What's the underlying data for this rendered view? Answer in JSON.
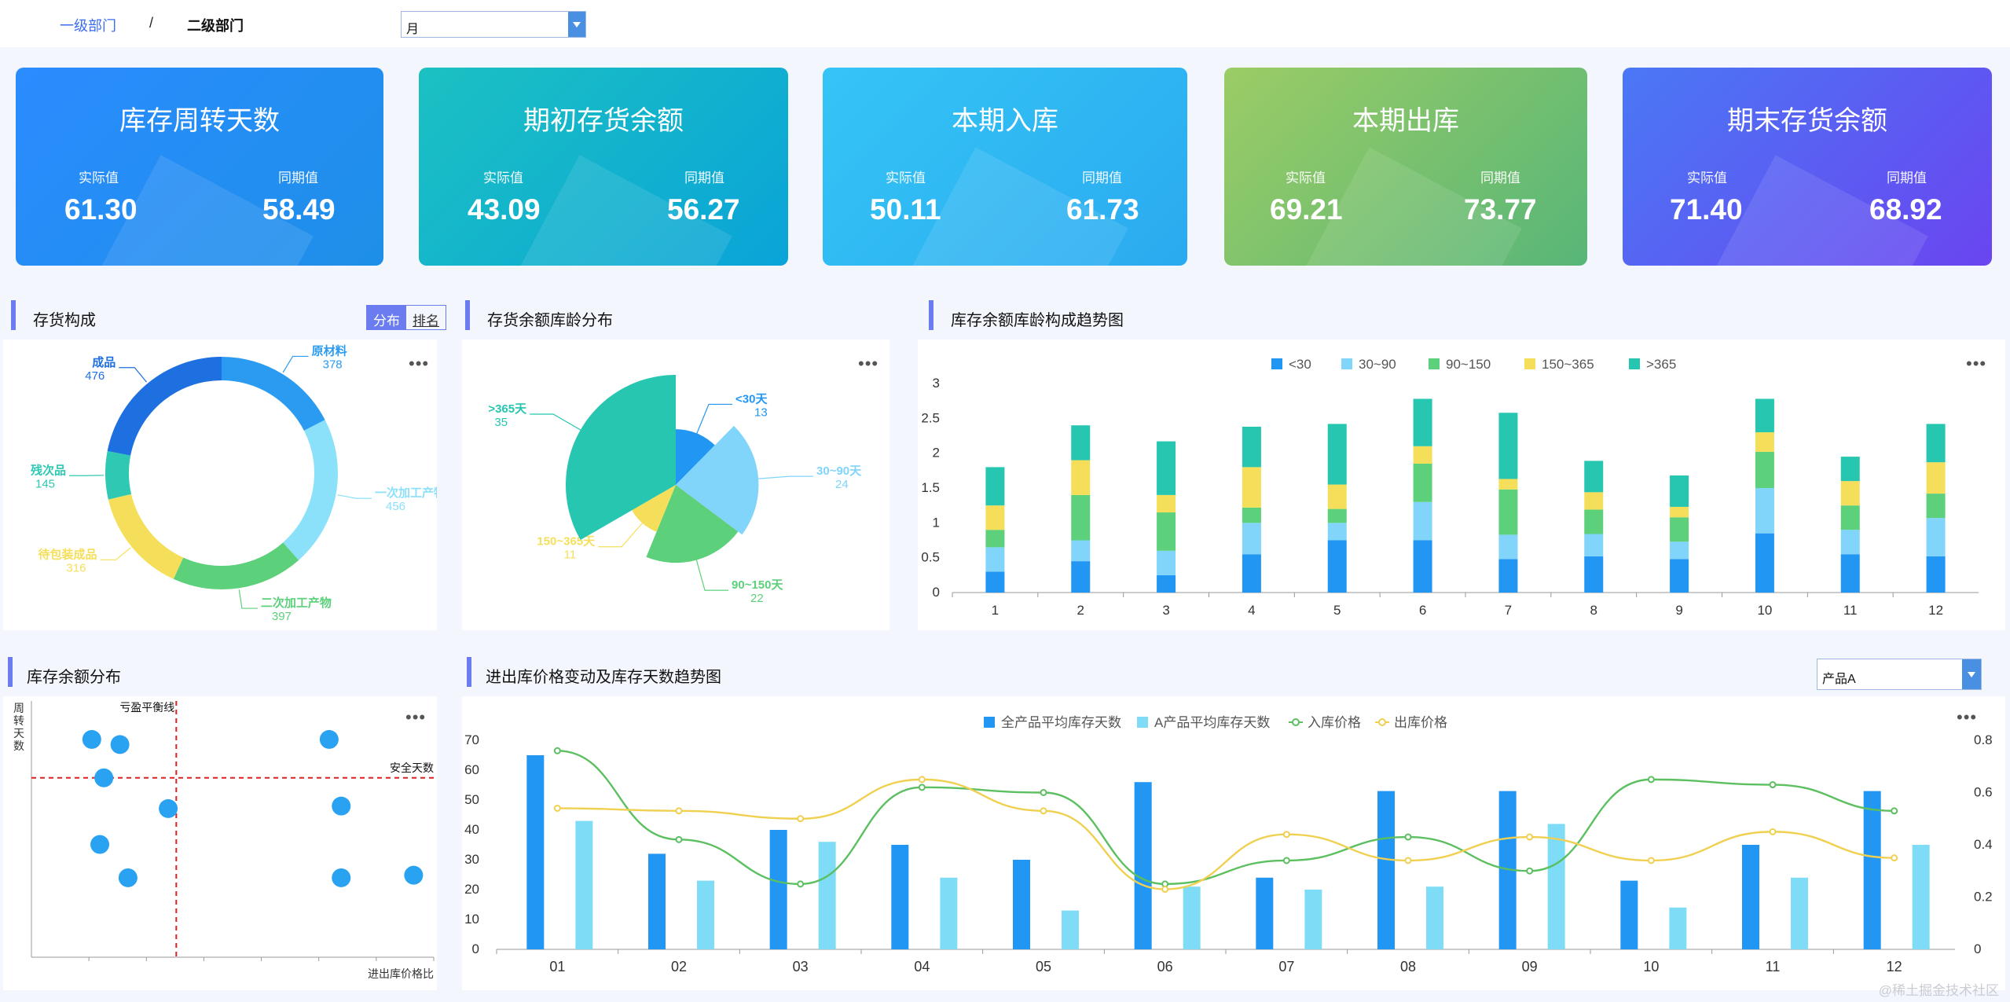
{
  "breadcrumb": {
    "first": "一级部门",
    "separator": "/",
    "second": "二级部门"
  },
  "period_select": {
    "value": "月"
  },
  "product_select": {
    "value": "产品A"
  },
  "kpis": [
    {
      "title": "库存周转天数",
      "actual_label": "实际值",
      "actual": "61.30",
      "prior_label": "同期值",
      "prior": "58.49",
      "colors": [
        "#2a8cff",
        "#1e8fe8"
      ]
    },
    {
      "title": "期初存货余额",
      "actual_label": "实际值",
      "actual": "43.09",
      "prior_label": "同期值",
      "prior": "56.27",
      "colors": [
        "#1bc1c2",
        "#0aa4d8"
      ]
    },
    {
      "title": "本期入库",
      "actual_label": "实际值",
      "actual": "50.11",
      "prior_label": "同期值",
      "prior": "61.73",
      "colors": [
        "#35c5f5",
        "#2aaaf0"
      ]
    },
    {
      "title": "本期出库",
      "actual_label": "实际值",
      "actual": "69.21",
      "prior_label": "同期值",
      "prior": "73.77",
      "colors": [
        "#9ccc65",
        "#57b678"
      ]
    },
    {
      "title": "期末存货余额",
      "actual_label": "实际值",
      "actual": "71.40",
      "prior_label": "同期值",
      "prior": "68.92",
      "colors": [
        "#4a78f5",
        "#6a45f0"
      ]
    }
  ],
  "sections": {
    "composition": "存货构成",
    "aging": "存货余额库龄分布",
    "trend": "库存余额库龄构成趋势图",
    "distribution": "库存余额分布",
    "price": "进出库价格变动及库存天数趋势图"
  },
  "composition_tabs": {
    "active": "分布",
    "inactive": "排名"
  },
  "more_label": "•••",
  "watermark": "@稀土掘金技术社区",
  "chart_data": [
    {
      "id": "composition",
      "type": "pie",
      "slices": [
        {
          "name": "原材料",
          "value": 378,
          "color": "#2a9bf0"
        },
        {
          "name": "一次加工产物",
          "value": 456,
          "color": "#8be0fa"
        },
        {
          "name": "二次加工产物",
          "value": 397,
          "color": "#5cd07a"
        },
        {
          "name": "待包装成品",
          "value": 316,
          "color": "#f5df5a"
        },
        {
          "name": "残次品",
          "value": 145,
          "color": "#2ec8b3"
        },
        {
          "name": "成品",
          "value": 476,
          "color": "#1e6fe0"
        }
      ]
    },
    {
      "id": "aging",
      "type": "pie",
      "slices": [
        {
          "name": "<30天",
          "value": 13,
          "color": "#2196f3"
        },
        {
          "name": "30~90天",
          "value": 24,
          "color": "#81d4fa"
        },
        {
          "name": "90~150天",
          "value": 22,
          "color": "#5cd07a"
        },
        {
          "name": "150~365天",
          "value": 11,
          "color": "#f5df5a"
        },
        {
          "name": ">365天",
          "value": 35,
          "color": "#26c6b0"
        }
      ]
    },
    {
      "id": "trend",
      "type": "bar",
      "stacked": true,
      "categories": [
        "1",
        "2",
        "3",
        "4",
        "5",
        "6",
        "7",
        "8",
        "9",
        "10",
        "11",
        "12"
      ],
      "ylim": [
        0,
        3
      ],
      "yticks": [
        "0",
        "0.5",
        "1",
        "1.5",
        "2",
        "2.5",
        "3"
      ],
      "legend_position": "top",
      "series": [
        {
          "name": "<30",
          "color": "#2196f3",
          "values": [
            0.3,
            0.45,
            0.25,
            0.55,
            0.75,
            0.75,
            0.48,
            0.52,
            0.48,
            0.85,
            0.55,
            0.52
          ]
        },
        {
          "name": "30~90",
          "color": "#81d4fa",
          "values": [
            0.35,
            0.3,
            0.35,
            0.45,
            0.25,
            0.55,
            0.35,
            0.32,
            0.25,
            0.65,
            0.35,
            0.55
          ]
        },
        {
          "name": "90~150",
          "color": "#5cd07a",
          "values": [
            0.25,
            0.65,
            0.55,
            0.22,
            0.2,
            0.55,
            0.65,
            0.35,
            0.35,
            0.52,
            0.35,
            0.35
          ]
        },
        {
          "name": "150~365",
          "color": "#f5df5a",
          "values": [
            0.35,
            0.5,
            0.25,
            0.58,
            0.35,
            0.25,
            0.15,
            0.25,
            0.15,
            0.28,
            0.35,
            0.45
          ]
        },
        {
          "name": ">365",
          "color": "#26c6b0",
          "values": [
            0.55,
            0.5,
            0.77,
            0.58,
            0.87,
            0.68,
            0.95,
            0.45,
            0.45,
            0.48,
            0.35,
            0.55
          ]
        }
      ]
    },
    {
      "id": "distribution",
      "type": "scatter",
      "ylabel": "周转天数",
      "xlabel": "进出库价格比",
      "vline_label": "亏盈平衡线",
      "hline_label": "安全天数",
      "grid": false,
      "points": [
        [
          0.15,
          0.85
        ],
        [
          0.22,
          0.83
        ],
        [
          0.18,
          0.7
        ],
        [
          0.34,
          0.58
        ],
        [
          0.17,
          0.44
        ],
        [
          0.24,
          0.31
        ],
        [
          0.74,
          0.85
        ],
        [
          0.77,
          0.59
        ],
        [
          0.77,
          0.31
        ],
        [
          0.95,
          0.32
        ]
      ]
    },
    {
      "id": "price",
      "type": "bar",
      "categories": [
        "01",
        "02",
        "03",
        "04",
        "05",
        "06",
        "07",
        "08",
        "09",
        "10",
        "11",
        "12"
      ],
      "ylim": [
        0,
        70
      ],
      "yticks": [
        "0",
        "10",
        "20",
        "30",
        "40",
        "50",
        "60",
        "70"
      ],
      "y2lim": [
        0,
        0.8
      ],
      "y2ticks": [
        "0",
        "0.2",
        "0.4",
        "0.6",
        "0.8"
      ],
      "legend_position": "top",
      "series": [
        {
          "name": "全产品平均库存天数",
          "kind": "bar",
          "color": "#2196f3",
          "values": [
            65,
            32,
            40,
            35,
            30,
            56,
            24,
            53,
            53,
            23,
            35,
            53
          ]
        },
        {
          "name": "A产品平均库存天数",
          "kind": "bar",
          "color": "#7fdcf7",
          "values": [
            43,
            23,
            36,
            24,
            13,
            21,
            20,
            21,
            42,
            14,
            24,
            35
          ]
        },
        {
          "name": "入库价格",
          "kind": "line",
          "axis": "right",
          "color": "#5cbf60",
          "values": [
            0.76,
            0.42,
            0.25,
            0.62,
            0.6,
            0.25,
            0.34,
            0.43,
            0.3,
            0.65,
            0.63,
            0.53
          ]
        },
        {
          "name": "出库价格",
          "kind": "line",
          "axis": "right",
          "color": "#f0d050",
          "values": [
            0.54,
            0.53,
            0.5,
            0.65,
            0.53,
            0.23,
            0.44,
            0.34,
            0.43,
            0.34,
            0.45,
            0.35
          ]
        }
      ]
    }
  ]
}
